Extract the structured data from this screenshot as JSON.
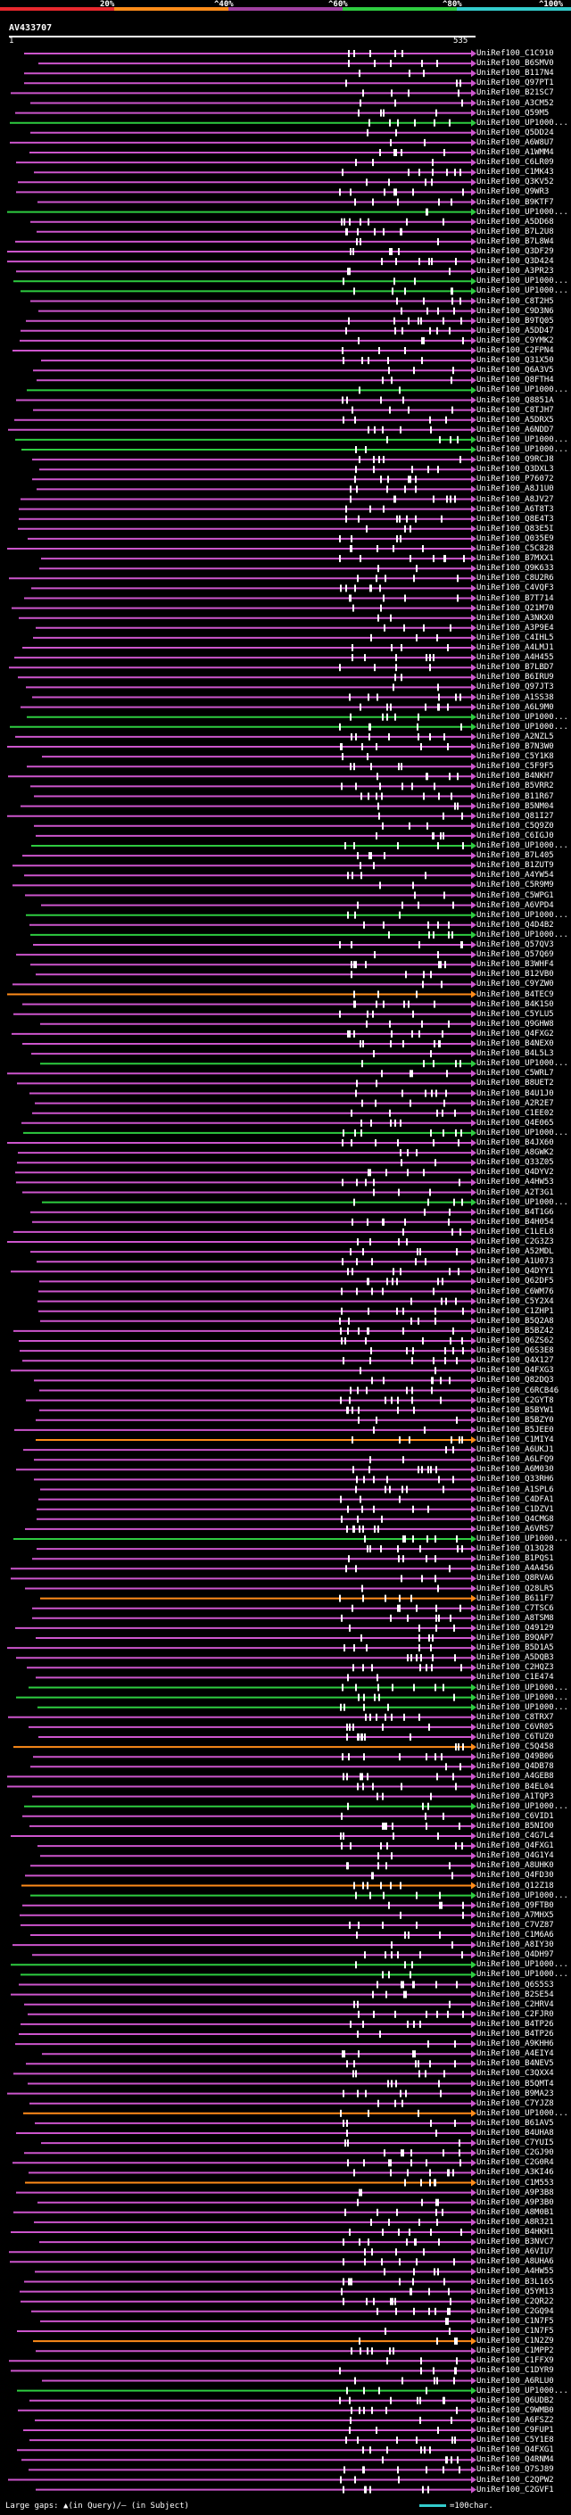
{
  "header": {
    "percent_labels": [
      "20%",
      "^40%",
      "^60%",
      "^80%",
      "^100%"
    ],
    "colors": [
      "#e8282d",
      "#ff8c1a",
      "#a040a0",
      "#2ecc40",
      "#33cccc"
    ]
  },
  "query": {
    "id": "AV433707",
    "ruler_start": "1",
    "ruler_end": "535"
  },
  "hits": [
    "UniRef100_C1C910",
    "UniRef100_B6SMV0",
    "UniRef100_B117N4",
    "UniRef100_Q97PT1",
    "UniRef100_B21SC7",
    "UniRef100_A3CM52",
    "UniRef100_Q59M5",
    "UniRef100_UP1000...",
    "UniRef100_Q5DD24",
    "UniRef100_A6W8U7",
    "UniRef100_A1WMM4",
    "UniRef100_C6LR09",
    "UniRef100_C1MK43",
    "UniRef100_Q3KV52",
    "UniRef100_Q9WR3",
    "UniRef100_B9KTF7",
    "UniRef100_UP1000...",
    "UniRef100_A5DD68",
    "UniRef100_B7L2U8",
    "UniRef100_B7L8W4",
    "UniRef100_Q3DF29",
    "UniRef100_Q3D424",
    "UniRef100_A3PR23",
    "UniRef100_UP1000...",
    "UniRef100_UP1000...",
    "UniRef100_C8T2H5",
    "UniRef100_C9D3N6",
    "UniRef100_B9TQ05",
    "UniRef100_A5DD47",
    "UniRef100_C9YMK2",
    "UniRef100_C2FPN4",
    "UniRef100_Q31X50",
    "UniRef100_Q6A3V5",
    "UniRef100_Q8FTH4",
    "UniRef100_UP1000...",
    "UniRef100_Q8851A",
    "UniRef100_C8TJH7",
    "UniRef100_A5DRX5",
    "UniRef100_A6NDD7",
    "UniRef100_UP1000...",
    "UniRef100_UP1000...",
    "UniRef100_Q9RCJ8",
    "UniRef100_Q3DXL3",
    "UniRef100_P76072",
    "UniRef100_A8J1U0",
    "UniRef100_A8JV27",
    "UniRef100_A6T8T3",
    "UniRef100_Q8E4T3",
    "UniRef100_Q83E5I",
    "UniRef100_Q035E9",
    "UniRef100_C5C828",
    "UniRef100_B7MXX1",
    "UniRef100_Q9K633",
    "UniRef100_C8U2R6",
    "UniRef100_C4VQF3",
    "UniRef100_B7T714",
    "UniRef100_Q21M70",
    "UniRef100_A3NKX0",
    "UniRef100_A3P9E4",
    "UniRef100_C4IHL5",
    "UniRef100_A4LMJ1",
    "UniRef100_A4H455",
    "UniRef100_B7LBD7",
    "UniRef100_B6IRU9",
    "UniRef100_Q97JT3",
    "UniRef100_A1SS38",
    "UniRef100_A6L9M0",
    "UniRef100_UP1000...",
    "UniRef100_UP1000...",
    "UniRef100_A2NZL5",
    "UniRef100_B7N3W0",
    "UniRef100_C5Y1K8",
    "UniRef100_C5F9F5",
    "UniRef100_B4NKH7",
    "UniRef100_B5VRR2",
    "UniRef100_B11R67",
    "UniRef100_B5NM04",
    "UniRef100_Q81I27",
    "UniRef100_C5Q9Z0",
    "UniRef100_C6IGJ0",
    "UniRef100_UP1000...",
    "UniRef100_B7L405",
    "UniRef100_B1ZUT9",
    "UniRef100_A4YW54",
    "UniRef100_C5R9M9",
    "UniRef100_C5WPG1",
    "UniRef100_A6VPD4",
    "UniRef100_UP1000...",
    "UniRef100_Q4D4B2",
    "UniRef100_UP1000...",
    "UniRef100_Q57QV3",
    "UniRef100_Q57Q69",
    "UniRef100_B3WHF4",
    "UniRef100_B12VB0",
    "UniRef100_C9YZW0",
    "UniRef100_B4TEC9",
    "UniRef100_B4K1S0",
    "UniRef100_C5YLU5",
    "UniRef100_Q9GHW8",
    "UniRef100_Q4FXG2",
    "UniRef100_B4NEX0",
    "UniRef100_B4L5L3",
    "UniRef100_UP1000...",
    "UniRef100_C5WRL7",
    "UniRef100_B8UET2",
    "UniRef100_B4U1J0",
    "UniRef100_A2R2E7",
    "UniRef100_C1EE02",
    "UniRef100_Q4E065",
    "UniRef100_UP1000...",
    "UniRef100_B4JX60",
    "UniRef100_A8GWK2",
    "UniRef100_Q33Z05",
    "UniRef100_Q4DYV2",
    "UniRef100_A4HW53",
    "UniRef100_A2T3G1",
    "UniRef100_UP1000...",
    "UniRef100_B4T1G6",
    "UniRef100_B4H054",
    "UniRef100_C1LEL8",
    "UniRef100_C2G3Z3",
    "UniRef100_A52MDL",
    "UniRef100_A1U073",
    "UniRef100_Q4DYY1",
    "UniRef100_Q62DF5",
    "UniRef100_C6WM76",
    "UniRef100_C5Y2X4",
    "UniRef100_C1ZHP1",
    "UniRef100_B5Q2A8",
    "UniRef100_B5BZ42",
    "UniRef100_Q6ZS62",
    "UniRef100_Q6S3E8",
    "UniRef100_Q4X127",
    "UniRef100_Q4FXG3",
    "UniRef100_Q82DQ3",
    "UniRef100_C6RCB46",
    "UniRef100_C2GYT8",
    "UniRef100_B5BYW1",
    "UniRef100_B5BZY0",
    "UniRef100_B5JEE0",
    "UniRef100_C1MIY4",
    "UniRef100_A6UKJ1",
    "UniRef100_A6LFQ9",
    "UniRef100_A6M030",
    "UniRef100_Q33RH6",
    "UniRef100_A1SPL6",
    "UniRef100_C4DFA1",
    "UniRef100_C1DZV1",
    "UniRef100_Q4CMG8",
    "UniRef100_A6VRS7",
    "UniRef100_UP1000...",
    "UniRef100_Q13Q28",
    "UniRef100_B1PQS1",
    "UniRef100_A4A456",
    "UniRef100_Q8RVA6",
    "UniRef100_Q28LR5",
    "UniRef100_B611F7",
    "UniRef100_C7TSC6",
    "UniRef100_A8TSM8",
    "UniRef100_Q49129",
    "UniRef100_B9QAP7",
    "UniRef100_B5D1A5",
    "UniRef100_A5DQB3",
    "UniRef100_C2HQZ3",
    "UniRef100_C1E474",
    "UniRef100_UP1000...",
    "UniRef100_UP1000...",
    "UniRef100_UP1000...",
    "UniRef100_C8TRX7",
    "UniRef100_C6VR05",
    "UniRef100_C6TUZ0",
    "UniRef100_C5Q458",
    "UniRef100_Q49B06",
    "UniRef100_Q4DB78",
    "UniRef100_A4GEB8",
    "UniRef100_B4EL04",
    "UniRef100_A1TQP3",
    "UniRef100_UP1000...",
    "UniRef100_C6VID1",
    "UniRef100_B5NIO0",
    "UniRef100_C4G7L4",
    "UniRef100_Q4FXG1",
    "UniRef100_Q4G1Y4",
    "UniRef100_A8UHK0",
    "UniRef100_Q4FD30",
    "UniRef100_Q12Z18",
    "UniRef100_UP1000...",
    "UniRef100_Q9FTB0",
    "UniRef100_A7MHX5",
    "UniRef100_C7VZ87",
    "UniRef100_C1M6A6",
    "UniRef100_A8IY30",
    "UniRef100_Q4DH97",
    "UniRef100_UP1000...",
    "UniRef100_UP1000...",
    "UniRef100_Q6S5S3",
    "UniRef100_B2SE54",
    "UniRef100_C2HRV4",
    "UniRef100_C2FJR0",
    "UniRef100_B4TP26",
    "UniRef100_B4TP26",
    "UniRef100_A9KHH6",
    "UniRef100_A4EIY4",
    "UniRef100_B4NEV5",
    "UniRef100_C3QXX4",
    "UniRef100_B5QMT4",
    "UniRef100_B9MA23",
    "UniRef100_C7YJZ8",
    "UniRef100_UP1000...",
    "UniRef100_B61AV5",
    "UniRef100_B4UHA8",
    "UniRef100_C7YUI5",
    "UniRef100_C2GJ90",
    "UniRef100_C2G0R4",
    "UniRef100_A3KI46",
    "UniRef100_C1M553",
    "UniRef100_A9P3B8",
    "UniRef100_A9P3B0",
    "UniRef100_A8M0B1",
    "UniRef100_A8R321",
    "UniRef100_B4HKH1",
    "UniRef100_B3NVC7",
    "UniRef100_A6VIU7",
    "UniRef100_A8UHA6",
    "UniRef100_A4HW55",
    "UniRef100_B3L165",
    "UniRef100_Q5YM13",
    "UniRef100_C2QR22",
    "UniRef100_C2GQ94",
    "UniRef100_C1N7F5",
    "UniRef100_C1N7F5",
    "UniRef100_C1N2Z9",
    "UniRef100_C1MPP2",
    "UniRef100_C1FFX9",
    "UniRef100_C1DYR9",
    "UniRef100_A6RLU0",
    "UniRef100_UP1000...",
    "UniRef100_Q6UDB2",
    "UniRef100_C9WMB0",
    "UniRef100_A6FSZ2",
    "UniRef100_C9FUP1",
    "UniRef100_C5Y1E8",
    "UniRef100_Q4FXG1",
    "UniRef100_Q4RNM4",
    "UniRef100_Q7SJ89",
    "UniRef100_C2QPW2",
    "UniRef100_C2GVF1"
  ],
  "footer": {
    "gaps_text": "Large gaps: ▲(in Query)/– (in Subject)",
    "scale_text": "=100char."
  }
}
